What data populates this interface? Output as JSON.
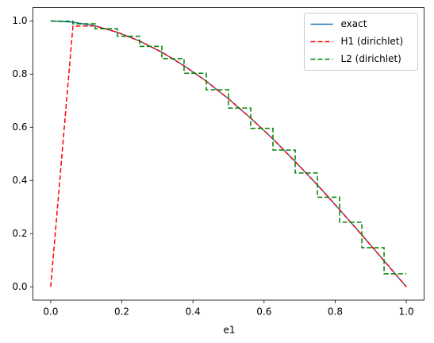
{
  "chart_data": {
    "type": "line",
    "xlabel": "e1",
    "series": [
      {
        "name": "exact",
        "color": "#1f77b4",
        "dash": "none",
        "x": [
          0,
          0.0625,
          0.125,
          0.1875,
          0.25,
          0.3125,
          0.375,
          0.4375,
          0.5,
          0.5625,
          0.625,
          0.6875,
          0.75,
          0.8125,
          0.875,
          0.9375,
          1
        ],
        "values": [
          1,
          0.995,
          0.981,
          0.957,
          0.924,
          0.882,
          0.831,
          0.773,
          0.707,
          0.634,
          0.556,
          0.471,
          0.383,
          0.29,
          0.195,
          0.098,
          0
        ]
      },
      {
        "name": "H1 (dirichlet)",
        "color": "#ff0000",
        "dash": "6,3",
        "x": [
          0,
          0.0625,
          0.125,
          0.1875,
          0.25,
          0.3125,
          0.375,
          0.4375,
          0.5,
          0.5625,
          0.625,
          0.6875,
          0.75,
          0.8125,
          0.875,
          0.9375,
          1
        ],
        "values": [
          0,
          0.98,
          0.981,
          0.957,
          0.924,
          0.882,
          0.831,
          0.773,
          0.707,
          0.634,
          0.556,
          0.471,
          0.383,
          0.29,
          0.195,
          0.098,
          0
        ]
      },
      {
        "name": "L2 (dirichlet)",
        "color": "#008000",
        "dash": "6,3",
        "x": [
          0,
          0.0625,
          0.0625,
          0.125,
          0.125,
          0.1875,
          0.1875,
          0.25,
          0.25,
          0.3125,
          0.3125,
          0.375,
          0.375,
          0.4375,
          0.4375,
          0.5,
          0.5,
          0.5625,
          0.5625,
          0.625,
          0.625,
          0.6875,
          0.6875,
          0.75,
          0.75,
          0.8125,
          0.8125,
          0.875,
          0.875,
          0.9375,
          0.9375,
          1
        ],
        "values": [
          0.999,
          0.999,
          0.989,
          0.989,
          0.97,
          0.97,
          0.942,
          0.942,
          0.904,
          0.904,
          0.858,
          0.858,
          0.803,
          0.803,
          0.741,
          0.741,
          0.672,
          0.672,
          0.596,
          0.596,
          0.514,
          0.514,
          0.428,
          0.428,
          0.337,
          0.337,
          0.243,
          0.243,
          0.147,
          0.147,
          0.049,
          0.049
        ]
      }
    ],
    "xlim": [
      -0.05,
      1.05
    ],
    "ylim": [
      -0.05,
      1.05
    ],
    "xticks": [
      {
        "value": 0,
        "label": "0.0"
      },
      {
        "value": 0.2,
        "label": "0.2"
      },
      {
        "value": 0.4,
        "label": "0.4"
      },
      {
        "value": 0.6,
        "label": "0.6"
      },
      {
        "value": 0.8,
        "label": "0.8"
      },
      {
        "value": 1,
        "label": "1.0"
      }
    ],
    "yticks": [
      {
        "value": 0,
        "label": "0.0"
      },
      {
        "value": 0.2,
        "label": "0.2"
      },
      {
        "value": 0.4,
        "label": "0.4"
      },
      {
        "value": 0.6,
        "label": "0.6"
      },
      {
        "value": 0.8,
        "label": "0.8"
      },
      {
        "value": 1,
        "label": "1.0"
      }
    ],
    "grid": false,
    "legend": "upper right"
  }
}
